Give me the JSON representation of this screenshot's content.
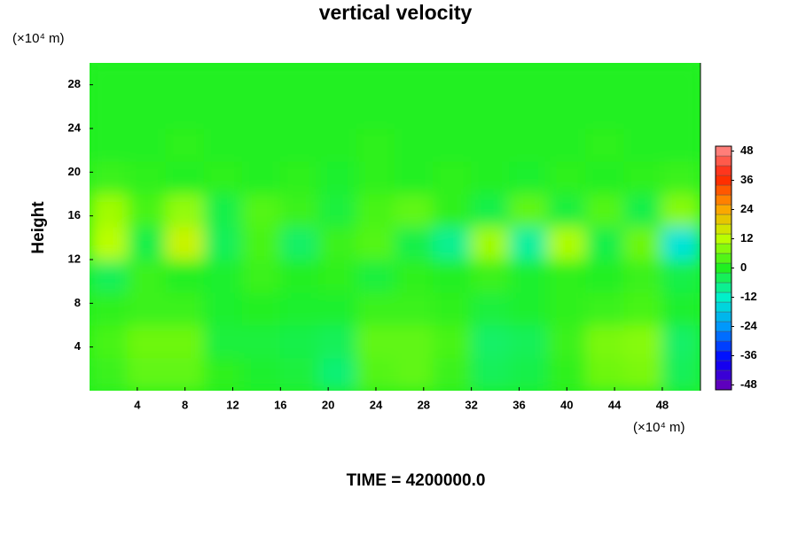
{
  "chart_data": {
    "type": "heatmap",
    "title": "vertical velocity",
    "y_label": "Height",
    "y_unit": "(×10⁴ m)",
    "x_unit": "(×10⁴ m)",
    "footer": "TIME = 4200000.0",
    "xbins": [
      0,
      3.2,
      6.4,
      9.6,
      12.8,
      16,
      19.2,
      22.4,
      25.6,
      28.8,
      32,
      35.2,
      38.4,
      41.6,
      44.8,
      48,
      51.2
    ],
    "ybins": [
      0,
      3,
      6,
      9,
      12,
      15,
      18,
      21,
      24,
      27,
      30
    ],
    "values": [
      [
        2,
        5,
        5,
        1,
        -1,
        -2,
        -6,
        4,
        5,
        2,
        -4,
        -3,
        1,
        6,
        7,
        -4
      ],
      [
        3,
        6,
        6,
        -2,
        -2,
        -3,
        -4,
        5,
        5,
        3,
        -5,
        -4,
        2,
        7,
        8,
        -5
      ],
      [
        1,
        2,
        2,
        -1,
        0,
        -1,
        -1,
        2,
        2,
        1,
        -2,
        -1,
        1,
        2,
        3,
        -1
      ],
      [
        -4,
        2,
        0,
        -1,
        2,
        0,
        1,
        -2,
        1,
        0,
        2,
        -1,
        1,
        0,
        2,
        -3
      ],
      [
        12,
        -3,
        14,
        -4,
        3,
        -5,
        2,
        4,
        -3,
        -8,
        10,
        -9,
        11,
        -3,
        6,
        -14
      ],
      [
        10,
        3,
        9,
        -3,
        4,
        2,
        -2,
        3,
        5,
        1,
        -3,
        5,
        -2,
        4,
        -3,
        8
      ],
      [
        2,
        1,
        0,
        1,
        0,
        1,
        -1,
        1,
        0,
        1,
        0,
        -1,
        1,
        0,
        1,
        2
      ],
      [
        0,
        0,
        1,
        0,
        0,
        0,
        0,
        1,
        0,
        0,
        0,
        0,
        0,
        1,
        0,
        0
      ],
      [
        0,
        0,
        0,
        0,
        0,
        0,
        0,
        0,
        0,
        0,
        0,
        0,
        0,
        0,
        0,
        0
      ],
      [
        0,
        0,
        0,
        0,
        0,
        0,
        0,
        0,
        0,
        0,
        0,
        0,
        0,
        0,
        0,
        0
      ]
    ],
    "xlim": [
      0,
      51.2
    ],
    "ylim": [
      0,
      30
    ],
    "xticks": [
      4,
      8,
      12,
      16,
      20,
      24,
      28,
      32,
      36,
      40,
      44,
      48
    ],
    "yticks": [
      4,
      8,
      12,
      16,
      20,
      24,
      28
    ],
    "colorbar": {
      "lim": [
        -50,
        50
      ],
      "ticks": [
        48,
        36,
        24,
        12,
        0,
        -12,
        -24,
        -36,
        -48
      ],
      "colormap": [
        "#7000b0",
        "#0000ff",
        "#0090ff",
        "#00f0d0",
        "#20f020",
        "#c0ff00",
        "#ffa000",
        "#ff2000",
        "#ff9090"
      ]
    }
  }
}
